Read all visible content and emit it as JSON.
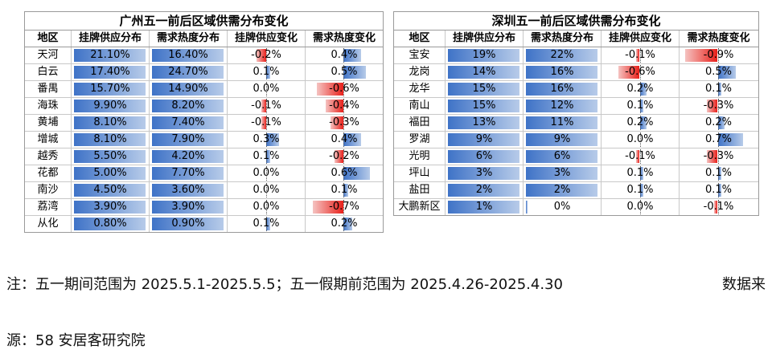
{
  "chart_data": [
    {
      "type": "table",
      "title": "广州五一前后区域供需分布变化",
      "columns": [
        "地区",
        "挂牌供应分布",
        "需求热度分布",
        "挂牌供应变化",
        "需求热度变化"
      ],
      "rows": [
        {
          "region": "天河",
          "supply": "21.10%",
          "demand": "16.40%",
          "supply_chg": "-0.2%",
          "demand_chg": "0.4%"
        },
        {
          "region": "白云",
          "supply": "17.40%",
          "demand": "24.70%",
          "supply_chg": "0.1%",
          "demand_chg": "0.5%"
        },
        {
          "region": "番禺",
          "supply": "15.70%",
          "demand": "14.90%",
          "supply_chg": "0.0%",
          "demand_chg": "-0.6%"
        },
        {
          "region": "海珠",
          "supply": "9.90%",
          "demand": "8.20%",
          "supply_chg": "-0.1%",
          "demand_chg": "-0.4%"
        },
        {
          "region": "黄埔",
          "supply": "8.10%",
          "demand": "7.40%",
          "supply_chg": "-0.1%",
          "demand_chg": "-0.3%"
        },
        {
          "region": "增城",
          "supply": "8.10%",
          "demand": "7.90%",
          "supply_chg": "0.3%",
          "demand_chg": "0.4%"
        },
        {
          "region": "越秀",
          "supply": "5.50%",
          "demand": "4.20%",
          "supply_chg": "0.1%",
          "demand_chg": "-0.2%"
        },
        {
          "region": "花都",
          "supply": "5.00%",
          "demand": "7.70%",
          "supply_chg": "0.0%",
          "demand_chg": "0.6%"
        },
        {
          "region": "南沙",
          "supply": "4.50%",
          "demand": "3.60%",
          "supply_chg": "0.0%",
          "demand_chg": "0.1%"
        },
        {
          "region": "荔湾",
          "supply": "3.90%",
          "demand": "3.90%",
          "supply_chg": "0.0%",
          "demand_chg": "-0.7%"
        },
        {
          "region": "从化",
          "supply": "0.80%",
          "demand": "0.90%",
          "supply_chg": "0.1%",
          "demand_chg": "0.2%"
        }
      ]
    },
    {
      "type": "table",
      "title": "深圳五一前后区域供需分布变化",
      "columns": [
        "地区",
        "挂牌供应分布",
        "需求热度分布",
        "挂牌供应变化",
        "需求热度变化"
      ],
      "rows": [
        {
          "region": "宝安",
          "supply": "19%",
          "demand": "22%",
          "supply_chg": "-0.1%",
          "demand_chg": "-0.9%"
        },
        {
          "region": "龙岗",
          "supply": "14%",
          "demand": "16%",
          "supply_chg": "-0.6%",
          "demand_chg": "0.5%"
        },
        {
          "region": "龙华",
          "supply": "15%",
          "demand": "16%",
          "supply_chg": "0.2%",
          "demand_chg": "0.1%"
        },
        {
          "region": "南山",
          "supply": "15%",
          "demand": "12%",
          "supply_chg": "0.1%",
          "demand_chg": "-0.3%"
        },
        {
          "region": "福田",
          "supply": "13%",
          "demand": "11%",
          "supply_chg": "0.2%",
          "demand_chg": "0.2%"
        },
        {
          "region": "罗湖",
          "supply": "9%",
          "demand": "9%",
          "supply_chg": "0.0%",
          "demand_chg": "0.7%"
        },
        {
          "region": "光明",
          "supply": "6%",
          "demand": "6%",
          "supply_chg": "-0.1%",
          "demand_chg": "-0.3%"
        },
        {
          "region": "坪山",
          "supply": "3%",
          "demand": "3%",
          "supply_chg": "0.1%",
          "demand_chg": "0.1%"
        },
        {
          "region": "盐田",
          "supply": "2%",
          "demand": "2%",
          "supply_chg": "0.1%",
          "demand_chg": "0.1%"
        },
        {
          "region": "大鹏新区",
          "supply": "1%",
          "demand": "0%",
          "supply_chg": "0.0%",
          "demand_chg": "-0.1%"
        }
      ]
    }
  ],
  "notes": {
    "line1_left": "注：五一期间范围为 2025.5.1-2025.5.5；五一假期前范围为 2025.4.26-2025.4.30",
    "line1_right": "数据来",
    "line2": "源：58 安居客研究院"
  }
}
